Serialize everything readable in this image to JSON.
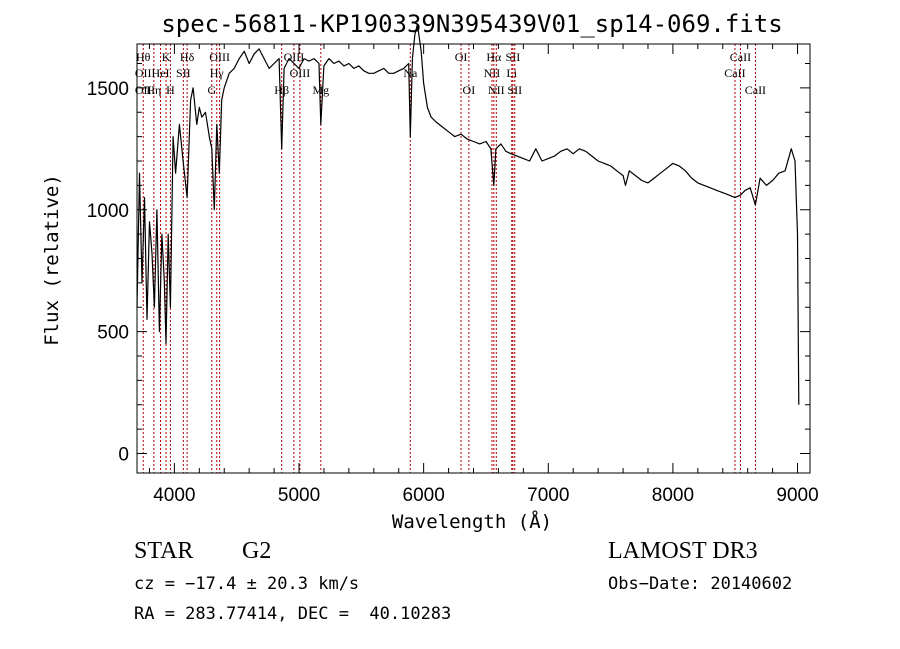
{
  "chart_data": {
    "type": "line",
    "title": "spec-56811-KP190339N395439V01_sp14-069.fits",
    "xlabel": "Wavelength (Å)",
    "ylabel": "Flux (relative)",
    "xlim": [
      3700,
      9100
    ],
    "ylim": [
      -80,
      1680
    ],
    "xticks": [
      4000,
      5000,
      6000,
      7000,
      8000,
      9000
    ],
    "yticks": [
      0,
      500,
      1000,
      1500
    ],
    "grid": false,
    "series": [
      {
        "x": [
          3700,
          3720,
          3740,
          3760,
          3780,
          3800,
          3820,
          3840,
          3860,
          3880,
          3900,
          3920,
          3933,
          3950,
          3968,
          3990,
          4010,
          4040,
          4070,
          4102,
          4130,
          4150,
          4180,
          4200,
          4220,
          4250,
          4280,
          4300,
          4320,
          4340,
          4360,
          4380,
          4400,
          4440,
          4480,
          4520,
          4560,
          4600,
          4640,
          4680,
          4720,
          4760,
          4800,
          4840,
          4861,
          4880,
          4920,
          4960,
          5000,
          5040,
          5080,
          5120,
          5160,
          5175,
          5200,
          5240,
          5280,
          5320,
          5360,
          5400,
          5440,
          5480,
          5520,
          5560,
          5600,
          5640,
          5680,
          5720,
          5760,
          5800,
          5840,
          5880,
          5893,
          5910,
          5930,
          5950,
          5980,
          6000,
          6030,
          6060,
          6100,
          6150,
          6200,
          6250,
          6300,
          6350,
          6400,
          6450,
          6500,
          6540,
          6563,
          6580,
          6620,
          6660,
          6700,
          6750,
          6800,
          6850,
          6900,
          6950,
          7000,
          7050,
          7100,
          7150,
          7200,
          7250,
          7300,
          7350,
          7400,
          7450,
          7500,
          7550,
          7600,
          7620,
          7650,
          7700,
          7750,
          7800,
          7850,
          7900,
          7950,
          8000,
          8050,
          8100,
          8150,
          8200,
          8250,
          8300,
          8350,
          8400,
          8450,
          8498,
          8542,
          8580,
          8620,
          8662,
          8700,
          8750,
          8800,
          8850,
          8900,
          8950,
          8980,
          9000,
          9010
        ],
        "values": [
          600,
          1150,
          700,
          1050,
          550,
          950,
          820,
          600,
          1000,
          500,
          900,
          700,
          450,
          900,
          600,
          1300,
          1150,
          1350,
          1200,
          1050,
          1450,
          1500,
          1350,
          1420,
          1380,
          1400,
          1300,
          1250,
          1000,
          1350,
          1150,
          1450,
          1500,
          1560,
          1580,
          1620,
          1650,
          1600,
          1640,
          1660,
          1620,
          1580,
          1600,
          1620,
          1250,
          1580,
          1620,
          1600,
          1580,
          1620,
          1610,
          1620,
          1600,
          1350,
          1590,
          1620,
          1600,
          1610,
          1590,
          1600,
          1580,
          1590,
          1570,
          1560,
          1560,
          1570,
          1580,
          1560,
          1560,
          1570,
          1580,
          1600,
          1300,
          1620,
          1720,
          1760,
          1650,
          1520,
          1420,
          1380,
          1360,
          1340,
          1320,
          1300,
          1310,
          1290,
          1280,
          1270,
          1280,
          1250,
          1100,
          1250,
          1270,
          1240,
          1230,
          1220,
          1210,
          1200,
          1250,
          1200,
          1210,
          1220,
          1240,
          1250,
          1230,
          1250,
          1240,
          1220,
          1200,
          1190,
          1180,
          1160,
          1140,
          1100,
          1160,
          1140,
          1120,
          1110,
          1130,
          1150,
          1170,
          1190,
          1180,
          1160,
          1130,
          1110,
          1100,
          1090,
          1080,
          1070,
          1060,
          1050,
          1060,
          1080,
          1090,
          1020,
          1130,
          1100,
          1120,
          1150,
          1160,
          1250,
          1200,
          900,
          200
        ]
      }
    ],
    "lines": [
      {
        "x": 3750,
        "rows": [
          "Hθ",
          "OII",
          "OII"
        ]
      },
      {
        "x": 3835,
        "rows": [
          "",
          "",
          "Hη"
        ]
      },
      {
        "x": 3889,
        "rows": [
          "",
          "HeI",
          ""
        ]
      },
      {
        "x": 3933,
        "rows": [
          "K",
          "",
          ""
        ]
      },
      {
        "x": 3968,
        "rows": [
          "",
          "",
          "H"
        ]
      },
      {
        "x": 4072,
        "rows": [
          "",
          "SII",
          ""
        ]
      },
      {
        "x": 4102,
        "rows": [
          "Hδ",
          "",
          ""
        ]
      },
      {
        "x": 4300,
        "rows": [
          "",
          "",
          "G"
        ]
      },
      {
        "x": 4340,
        "rows": [
          "",
          "Hγ",
          ""
        ]
      },
      {
        "x": 4363,
        "rows": [
          "OIII",
          "",
          ""
        ]
      },
      {
        "x": 4861,
        "rows": [
          "",
          "",
          "Hβ"
        ]
      },
      {
        "x": 4959,
        "rows": [
          "OIII",
          "",
          ""
        ]
      },
      {
        "x": 5007,
        "rows": [
          "",
          "OIII",
          ""
        ]
      },
      {
        "x": 5175,
        "rows": [
          "",
          "",
          "Mg"
        ]
      },
      {
        "x": 5893,
        "rows": [
          "",
          "Na",
          ""
        ]
      },
      {
        "x": 6300,
        "rows": [
          "OI",
          "",
          ""
        ]
      },
      {
        "x": 6363,
        "rows": [
          "",
          "",
          "OI"
        ]
      },
      {
        "x": 6548,
        "rows": [
          "",
          "NII",
          ""
        ]
      },
      {
        "x": 6563,
        "rows": [
          "Hα",
          "",
          ""
        ]
      },
      {
        "x": 6583,
        "rows": [
          "",
          "",
          "NII"
        ]
      },
      {
        "x": 6707,
        "rows": [
          "",
          "Li",
          ""
        ]
      },
      {
        "x": 6716,
        "rows": [
          "SII",
          "",
          ""
        ]
      },
      {
        "x": 6731,
        "rows": [
          "",
          "",
          "SII"
        ]
      },
      {
        "x": 8498,
        "rows": [
          "",
          "CaII",
          ""
        ]
      },
      {
        "x": 8542,
        "rows": [
          "CaII",
          "",
          ""
        ]
      },
      {
        "x": 8662,
        "rows": [
          "",
          "",
          "CaII"
        ]
      }
    ]
  },
  "footer": {
    "object_class": "STAR",
    "subclass": "G2",
    "survey": "LAMOST DR3",
    "redshift": "cz = −17.4 ± 20.3 km/s",
    "obs_date": "Obs−Date: 20140602",
    "coords": "RA = 283.77414, DEC =  40.10283"
  }
}
